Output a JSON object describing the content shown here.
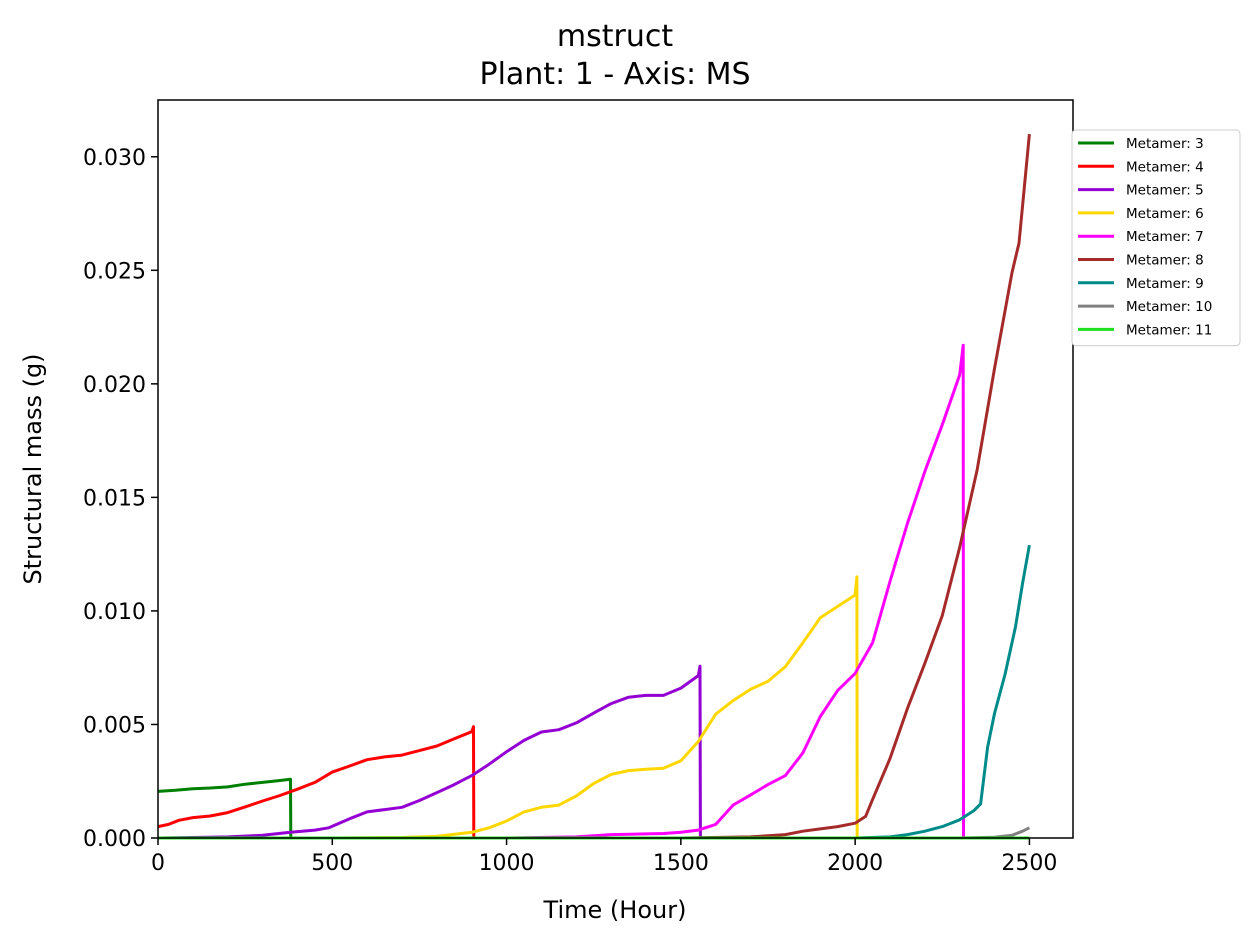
{
  "chart_data": {
    "type": "line",
    "title": "mstruct",
    "subtitle": "Plant: 1 - Axis: MS",
    "xlabel": "Time (Hour)",
    "ylabel": "Structural mass (g)",
    "xlim": [
      0,
      2625
    ],
    "ylim": [
      0,
      0.0325
    ],
    "xticks": [
      0,
      500,
      1000,
      1500,
      2000,
      2500
    ],
    "xtick_labels": [
      "0",
      "500",
      "1000",
      "1500",
      "2000",
      "2500"
    ],
    "yticks": [
      0,
      0.005,
      0.01,
      0.015,
      0.02,
      0.025,
      0.03
    ],
    "ytick_labels": [
      "0.000",
      "0.005",
      "0.010",
      "0.015",
      "0.020",
      "0.025",
      "0.030"
    ],
    "grid": false,
    "legend_position": "outside-right-top",
    "series": [
      {
        "name": "Metamer: 3",
        "color": "#008000",
        "points": [
          [
            0,
            0.00205
          ],
          [
            50,
            0.0021
          ],
          [
            100,
            0.00217
          ],
          [
            150,
            0.0022
          ],
          [
            200,
            0.00225
          ],
          [
            250,
            0.00237
          ],
          [
            300,
            0.00245
          ],
          [
            350,
            0.00253
          ],
          [
            380,
            0.00259
          ],
          [
            381,
            0.0
          ],
          [
            2500,
            0.0
          ]
        ]
      },
      {
        "name": "Metamer: 4",
        "color": "#ff0000",
        "points": [
          [
            0,
            0.0005
          ],
          [
            30,
            0.0006
          ],
          [
            60,
            0.00078
          ],
          [
            100,
            0.0009
          ],
          [
            150,
            0.00097
          ],
          [
            200,
            0.00112
          ],
          [
            250,
            0.00137
          ],
          [
            300,
            0.00163
          ],
          [
            350,
            0.00187
          ],
          [
            400,
            0.00215
          ],
          [
            450,
            0.00245
          ],
          [
            500,
            0.0029
          ],
          [
            550,
            0.00317
          ],
          [
            600,
            0.00345
          ],
          [
            650,
            0.00357
          ],
          [
            700,
            0.00365
          ],
          [
            750,
            0.00385
          ],
          [
            800,
            0.00405
          ],
          [
            850,
            0.00437
          ],
          [
            900,
            0.00468
          ],
          [
            905,
            0.0049
          ],
          [
            906,
            0.0
          ],
          [
            2500,
            0.0
          ]
        ]
      },
      {
        "name": "Metamer: 5",
        "color": "#9400d3",
        "points": [
          [
            0,
            0.0
          ],
          [
            100,
            2e-05
          ],
          [
            200,
            5e-05
          ],
          [
            300,
            0.00012
          ],
          [
            380,
            0.00025
          ],
          [
            450,
            0.00035
          ],
          [
            490,
            0.00045
          ],
          [
            550,
            0.00085
          ],
          [
            600,
            0.00115
          ],
          [
            650,
            0.00125
          ],
          [
            700,
            0.00135
          ],
          [
            750,
            0.00165
          ],
          [
            800,
            0.002
          ],
          [
            850,
            0.00235
          ],
          [
            900,
            0.00275
          ],
          [
            950,
            0.00325
          ],
          [
            1000,
            0.0038
          ],
          [
            1050,
            0.0043
          ],
          [
            1100,
            0.00467
          ],
          [
            1150,
            0.00477
          ],
          [
            1200,
            0.00507
          ],
          [
            1250,
            0.0055
          ],
          [
            1300,
            0.00592
          ],
          [
            1350,
            0.0062
          ],
          [
            1400,
            0.00628
          ],
          [
            1450,
            0.00628
          ],
          [
            1500,
            0.0066
          ],
          [
            1550,
            0.00715
          ],
          [
            1555,
            0.00757
          ],
          [
            1556,
            0.0
          ],
          [
            2500,
            0.0
          ]
        ]
      },
      {
        "name": "Metamer: 6",
        "color": "#ffd700",
        "points": [
          [
            0,
            0.0
          ],
          [
            500,
            0.0
          ],
          [
            700,
            2e-05
          ],
          [
            800,
            7e-05
          ],
          [
            900,
            0.00025
          ],
          [
            950,
            0.00045
          ],
          [
            1000,
            0.00075
          ],
          [
            1050,
            0.00115
          ],
          [
            1100,
            0.00135
          ],
          [
            1150,
            0.00145
          ],
          [
            1200,
            0.00185
          ],
          [
            1250,
            0.0024
          ],
          [
            1300,
            0.0028
          ],
          [
            1350,
            0.00297
          ],
          [
            1400,
            0.00303
          ],
          [
            1450,
            0.00307
          ],
          [
            1500,
            0.0034
          ],
          [
            1550,
            0.00425
          ],
          [
            1600,
            0.00545
          ],
          [
            1650,
            0.00605
          ],
          [
            1700,
            0.00655
          ],
          [
            1750,
            0.0069
          ],
          [
            1800,
            0.00755
          ],
          [
            1850,
            0.0086
          ],
          [
            1900,
            0.0097
          ],
          [
            1950,
            0.0102
          ],
          [
            2000,
            0.0107
          ],
          [
            2005,
            0.0115
          ],
          [
            2006,
            0.0
          ],
          [
            2500,
            0.0
          ]
        ]
      },
      {
        "name": "Metamer: 7",
        "color": "#ff00ff",
        "points": [
          [
            0,
            0.0
          ],
          [
            1000,
            0.0
          ],
          [
            1200,
            5e-05
          ],
          [
            1300,
            0.00015
          ],
          [
            1400,
            0.00018
          ],
          [
            1450,
            0.0002
          ],
          [
            1500,
            0.00025
          ],
          [
            1550,
            0.00035
          ],
          [
            1600,
            0.0006
          ],
          [
            1650,
            0.00145
          ],
          [
            1700,
            0.0019
          ],
          [
            1750,
            0.00235
          ],
          [
            1800,
            0.00275
          ],
          [
            1850,
            0.00375
          ],
          [
            1900,
            0.00535
          ],
          [
            1950,
            0.0065
          ],
          [
            2000,
            0.00725
          ],
          [
            2050,
            0.0086
          ],
          [
            2100,
            0.0113
          ],
          [
            2150,
            0.01385
          ],
          [
            2200,
            0.01615
          ],
          [
            2250,
            0.0182
          ],
          [
            2300,
            0.0204
          ],
          [
            2310,
            0.0217
          ],
          [
            2311,
            0.0
          ],
          [
            2500,
            0.0
          ]
        ]
      },
      {
        "name": "Metamer: 8",
        "color": "#a52a2a",
        "points": [
          [
            0,
            0.0
          ],
          [
            1500,
            0.0
          ],
          [
            1700,
            5e-05
          ],
          [
            1800,
            0.00015
          ],
          [
            1850,
            0.0003
          ],
          [
            1900,
            0.0004
          ],
          [
            1950,
            0.0005
          ],
          [
            2000,
            0.00065
          ],
          [
            2030,
            0.00095
          ],
          [
            2050,
            0.0017
          ],
          [
            2100,
            0.0035
          ],
          [
            2150,
            0.0057
          ],
          [
            2200,
            0.0077
          ],
          [
            2250,
            0.0098
          ],
          [
            2300,
            0.0128
          ],
          [
            2350,
            0.0162
          ],
          [
            2400,
            0.0207
          ],
          [
            2450,
            0.0249
          ],
          [
            2470,
            0.0262
          ],
          [
            2500,
            0.031
          ]
        ]
      },
      {
        "name": "Metamer: 9",
        "color": "#008b8b",
        "points": [
          [
            0,
            0.0
          ],
          [
            2000,
            0.0
          ],
          [
            2100,
            5e-05
          ],
          [
            2150,
            0.00015
          ],
          [
            2200,
            0.0003
          ],
          [
            2250,
            0.0005
          ],
          [
            2300,
            0.0008
          ],
          [
            2340,
            0.0012
          ],
          [
            2360,
            0.0015
          ],
          [
            2380,
            0.004
          ],
          [
            2400,
            0.0055
          ],
          [
            2430,
            0.0072
          ],
          [
            2460,
            0.0093
          ],
          [
            2480,
            0.0112
          ],
          [
            2500,
            0.0129
          ]
        ]
      },
      {
        "name": "Metamer: 10",
        "color": "#808080",
        "points": [
          [
            0,
            0.0
          ],
          [
            2300,
            0.0
          ],
          [
            2400,
            3e-05
          ],
          [
            2450,
            0.00012
          ],
          [
            2480,
            0.0003
          ],
          [
            2500,
            0.00045
          ]
        ]
      },
      {
        "name": "Metamer: 11",
        "color": "#1fe01f",
        "points": [
          [
            0,
            0.0
          ],
          [
            2500,
            0.0
          ]
        ]
      }
    ]
  }
}
